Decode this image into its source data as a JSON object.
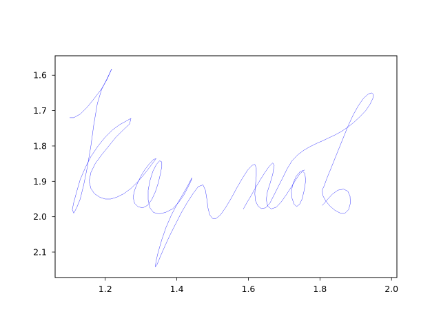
{
  "chart_data": {
    "type": "line",
    "title": "",
    "xlabel": "",
    "ylabel": "",
    "xlim": [
      1.06,
      2.015
    ],
    "ylim": [
      2.172,
      1.545
    ],
    "y_inverted": true,
    "x_ticks": [
      1.2,
      1.4,
      1.6,
      1.8,
      2.0
    ],
    "x_tick_labels": [
      "1.2",
      "1.4",
      "1.6",
      "1.8",
      "2.0"
    ],
    "y_ticks": [
      1.6,
      1.7,
      1.8,
      1.9,
      2.0,
      2.1
    ],
    "y_tick_labels": [
      "1.6",
      "1.7",
      "1.8",
      "1.9",
      "2.0",
      "2.1"
    ],
    "grid": false,
    "legend": "none",
    "line_color": "#0000ff",
    "series": [
      {
        "points": [
          [
            1.101,
            1.72
          ],
          [
            1.112,
            1.72
          ],
          [
            1.13,
            1.71
          ],
          [
            1.15,
            1.69
          ],
          [
            1.17,
            1.665
          ],
          [
            1.19,
            1.638
          ],
          [
            1.205,
            1.612
          ],
          [
            1.218,
            1.582
          ],
          [
            1.205,
            1.61
          ],
          [
            1.19,
            1.64
          ],
          [
            1.178,
            1.68
          ],
          [
            1.168,
            1.74
          ],
          [
            1.16,
            1.8
          ],
          [
            1.15,
            1.86
          ],
          [
            1.14,
            1.91
          ],
          [
            1.13,
            1.95
          ],
          [
            1.12,
            1.975
          ],
          [
            1.112,
            1.99
          ],
          [
            1.108,
            1.98
          ],
          [
            1.112,
            1.96
          ],
          [
            1.12,
            1.93
          ],
          [
            1.13,
            1.895
          ],
          [
            1.145,
            1.86
          ],
          [
            1.16,
            1.83
          ],
          [
            1.18,
            1.8
          ],
          [
            1.2,
            1.775
          ],
          [
            1.22,
            1.755
          ],
          [
            1.24,
            1.74
          ],
          [
            1.258,
            1.73
          ],
          [
            1.272,
            1.722
          ],
          [
            1.268,
            1.738
          ],
          [
            1.25,
            1.755
          ],
          [
            1.23,
            1.775
          ],
          [
            1.21,
            1.8
          ],
          [
            1.19,
            1.825
          ],
          [
            1.172,
            1.85
          ],
          [
            1.16,
            1.875
          ],
          [
            1.155,
            1.9
          ],
          [
            1.16,
            1.92
          ],
          [
            1.17,
            1.935
          ],
          [
            1.185,
            1.945
          ],
          [
            1.2,
            1.95
          ],
          [
            1.215,
            1.95
          ],
          [
            1.232,
            1.945
          ],
          [
            1.252,
            1.935
          ],
          [
            1.272,
            1.92
          ],
          [
            1.29,
            1.902
          ],
          [
            1.305,
            1.885
          ],
          [
            1.318,
            1.868
          ],
          [
            1.33,
            1.852
          ],
          [
            1.342,
            1.836
          ],
          [
            1.335,
            1.838
          ],
          [
            1.322,
            1.852
          ],
          [
            1.31,
            1.868
          ],
          [
            1.3,
            1.885
          ],
          [
            1.29,
            1.905
          ],
          [
            1.282,
            1.925
          ],
          [
            1.278,
            1.945
          ],
          [
            1.282,
            1.962
          ],
          [
            1.292,
            1.972
          ],
          [
            1.305,
            1.975
          ],
          [
            1.318,
            1.968
          ],
          [
            1.33,
            1.952
          ],
          [
            1.34,
            1.93
          ],
          [
            1.348,
            1.905
          ],
          [
            1.354,
            1.88
          ],
          [
            1.358,
            1.858
          ],
          [
            1.358,
            1.845
          ],
          [
            1.352,
            1.842
          ],
          [
            1.343,
            1.852
          ],
          [
            1.333,
            1.872
          ],
          [
            1.325,
            1.898
          ],
          [
            1.32,
            1.925
          ],
          [
            1.32,
            1.952
          ],
          [
            1.325,
            1.975
          ],
          [
            1.335,
            1.988
          ],
          [
            1.35,
            1.992
          ],
          [
            1.368,
            1.988
          ],
          [
            1.388,
            1.978
          ],
          [
            1.405,
            1.96
          ],
          [
            1.42,
            1.938
          ],
          [
            1.432,
            1.915
          ],
          [
            1.44,
            1.898
          ],
          [
            1.442,
            1.89
          ],
          [
            1.432,
            1.91
          ],
          [
            1.418,
            1.935
          ],
          [
            1.402,
            1.962
          ],
          [
            1.385,
            1.995
          ],
          [
            1.37,
            2.03
          ],
          [
            1.358,
            2.065
          ],
          [
            1.348,
            2.1
          ],
          [
            1.342,
            2.125
          ],
          [
            1.34,
            2.142
          ],
          [
            1.345,
            2.135
          ],
          [
            1.355,
            2.11
          ],
          [
            1.368,
            2.08
          ],
          [
            1.382,
            2.05
          ],
          [
            1.397,
            2.02
          ],
          [
            1.412,
            1.99
          ],
          [
            1.428,
            1.962
          ],
          [
            1.445,
            1.935
          ],
          [
            1.46,
            1.915
          ],
          [
            1.473,
            1.91
          ],
          [
            1.48,
            1.925
          ],
          [
            1.484,
            1.95
          ],
          [
            1.487,
            1.975
          ],
          [
            1.492,
            1.995
          ],
          [
            1.5,
            2.005
          ],
          [
            1.51,
            2.005
          ],
          [
            1.522,
            1.995
          ],
          [
            1.536,
            1.975
          ],
          [
            1.552,
            1.948
          ],
          [
            1.568,
            1.918
          ],
          [
            1.584,
            1.89
          ],
          [
            1.598,
            1.868
          ],
          [
            1.61,
            1.855
          ],
          [
            1.618,
            1.852
          ],
          [
            1.622,
            1.862
          ],
          [
            1.622,
            1.885
          ],
          [
            1.62,
            1.91
          ],
          [
            1.618,
            1.935
          ],
          [
            1.62,
            1.955
          ],
          [
            1.627,
            1.97
          ],
          [
            1.636,
            1.977
          ],
          [
            1.648,
            1.975
          ],
          [
            1.66,
            1.962
          ],
          [
            1.67,
            1.942
          ],
          [
            1.682,
            1.918
          ],
          [
            1.695,
            1.892
          ],
          [
            1.708,
            1.865
          ],
          [
            1.722,
            1.842
          ],
          [
            1.738,
            1.825
          ],
          [
            1.755,
            1.812
          ],
          [
            1.772,
            1.802
          ],
          [
            1.79,
            1.793
          ],
          [
            1.808,
            1.785
          ],
          [
            1.825,
            1.777
          ],
          [
            1.842,
            1.769
          ],
          [
            1.86,
            1.759
          ],
          [
            1.878,
            1.747
          ],
          [
            1.895,
            1.733
          ],
          [
            1.912,
            1.717
          ],
          [
            1.928,
            1.7
          ],
          [
            1.94,
            1.682
          ],
          [
            1.948,
            1.665
          ],
          [
            1.95,
            1.655
          ],
          [
            1.945,
            1.65
          ],
          [
            1.935,
            1.653
          ],
          [
            1.922,
            1.665
          ],
          [
            1.908,
            1.685
          ],
          [
            1.893,
            1.712
          ],
          [
            1.878,
            1.745
          ],
          [
            1.862,
            1.785
          ],
          [
            1.846,
            1.825
          ],
          [
            1.832,
            1.86
          ],
          [
            1.82,
            1.89
          ],
          [
            1.812,
            1.912
          ],
          [
            1.806,
            1.925
          ],
          [
            1.808,
            1.94
          ],
          [
            1.816,
            1.955
          ],
          [
            1.828,
            1.97
          ],
          [
            1.842,
            1.982
          ],
          [
            1.857,
            1.99
          ],
          [
            1.87,
            1.99
          ],
          [
            1.88,
            1.98
          ],
          [
            1.885,
            1.962
          ],
          [
            1.884,
            1.942
          ],
          [
            1.878,
            1.928
          ],
          [
            1.866,
            1.922
          ],
          [
            1.85,
            1.925
          ],
          [
            1.835,
            1.936
          ],
          [
            1.822,
            1.95
          ],
          [
            1.812,
            1.962
          ],
          [
            1.806,
            1.968
          ]
        ]
      },
      {
        "points": [
          [
            1.586,
            1.978
          ],
          [
            1.596,
            1.96
          ],
          [
            1.608,
            1.94
          ],
          [
            1.62,
            1.918
          ],
          [
            1.633,
            1.896
          ],
          [
            1.646,
            1.875
          ],
          [
            1.658,
            1.858
          ],
          [
            1.668,
            1.848
          ],
          [
            1.672,
            1.855
          ],
          [
            1.668,
            1.88
          ],
          [
            1.661,
            1.905
          ],
          [
            1.653,
            1.93
          ],
          [
            1.65,
            1.952
          ],
          [
            1.654,
            1.97
          ],
          [
            1.664,
            1.978
          ],
          [
            1.678,
            1.973
          ],
          [
            1.692,
            1.958
          ],
          [
            1.706,
            1.938
          ],
          [
            1.72,
            1.916
          ],
          [
            1.733,
            1.895
          ],
          [
            1.744,
            1.878
          ],
          [
            1.752,
            1.872
          ],
          [
            1.758,
            1.878
          ],
          [
            1.76,
            1.898
          ],
          [
            1.756,
            1.925
          ],
          [
            1.75,
            1.95
          ],
          [
            1.743,
            1.965
          ],
          [
            1.735,
            1.971
          ],
          [
            1.728,
            1.965
          ],
          [
            1.722,
            1.948
          ],
          [
            1.72,
            1.928
          ],
          [
            1.725,
            1.905
          ],
          [
            1.734,
            1.885
          ],
          [
            1.745,
            1.872
          ],
          [
            1.757,
            1.868
          ]
        ]
      }
    ]
  }
}
